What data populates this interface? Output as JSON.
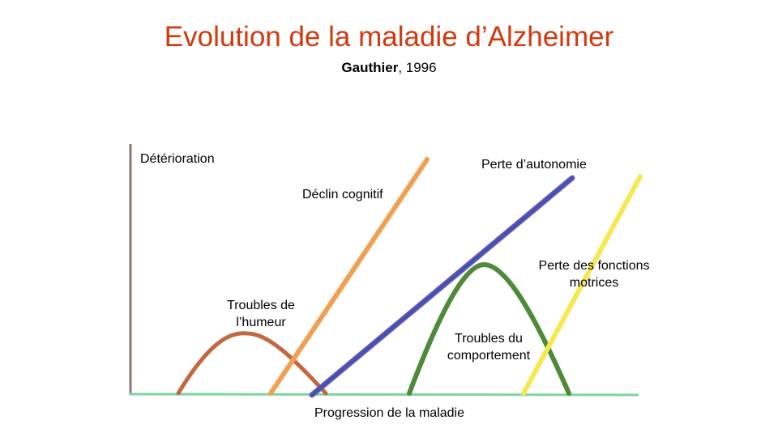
{
  "title": "Evolution de la maladie d’Alzheimer",
  "subtitle": {
    "author": "Gauthier",
    "year": ", 1996"
  },
  "labels": {
    "y_axis": "Détérioration",
    "x_axis": "Progression de la maladie",
    "cognitive": "Déclin cognitif",
    "autonomy": "Perte d’autonomie",
    "motor_line1": "Perte des fonctions",
    "motor_line2": "motrices",
    "mood_line1": "Troubles de",
    "mood_line2": "l’humeur",
    "behavior_line1": "Troubles du",
    "behavior_line2": "comportement"
  },
  "colors": {
    "title": "#d4380d",
    "axis_y": "#8a7b78",
    "axis_x": "#7ed3a0",
    "cognitive": "#f0a050",
    "autonomy": "#3b55b0",
    "motor": "#f5e850",
    "mood": "#c06840",
    "behavior": "#4e8a3a"
  }
}
